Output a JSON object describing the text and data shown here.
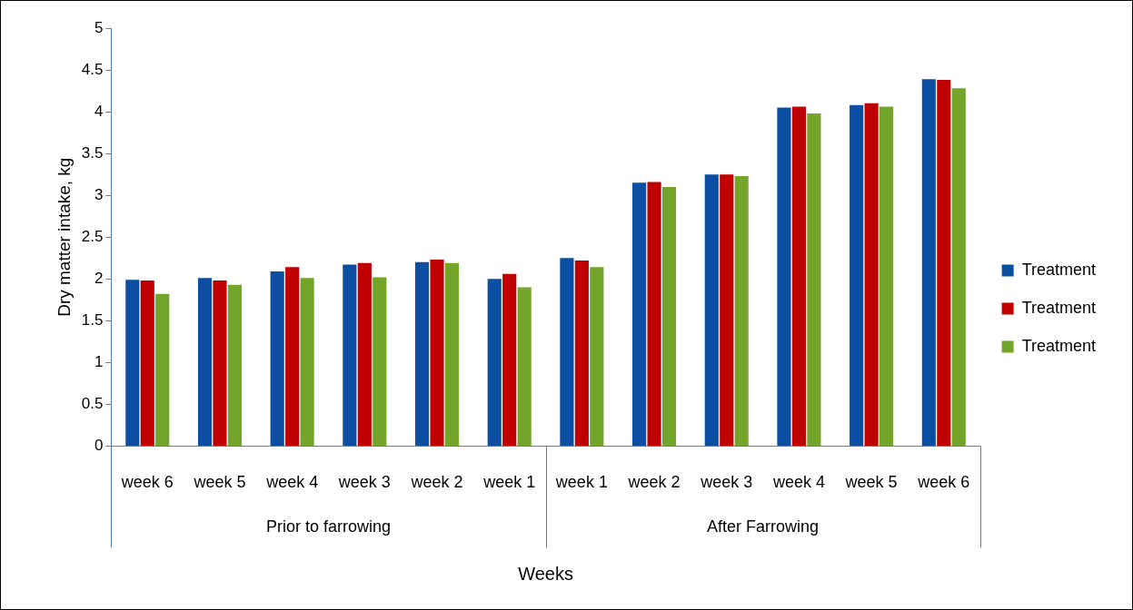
{
  "chart_data": {
    "type": "bar",
    "xlabel": "Weeks",
    "ylabel": "Dry matter intake, kg",
    "categories": [
      "week 6",
      "week 5",
      "week 4",
      "week 3",
      "week 2",
      "week 1",
      "week 1",
      "week 2",
      "week 3",
      "week 4",
      "week 5",
      "week 6"
    ],
    "series": [
      {
        "name": "Treatment",
        "color": "#0b4ea2",
        "values": [
          1.99,
          2.01,
          2.09,
          2.17,
          2.2,
          2.0,
          2.25,
          3.15,
          3.25,
          4.05,
          4.08,
          4.39
        ]
      },
      {
        "name": "Treatment",
        "color": "#c00000",
        "values": [
          1.98,
          1.98,
          2.14,
          2.19,
          2.23,
          2.06,
          2.22,
          3.16,
          3.25,
          4.06,
          4.1,
          4.38
        ]
      },
      {
        "name": "Treatment",
        "color": "#74a52b",
        "values": [
          1.82,
          1.93,
          2.01,
          2.02,
          2.19,
          1.9,
          2.14,
          3.1,
          3.23,
          3.98,
          4.06,
          4.28
        ]
      }
    ],
    "ylim": [
      0,
      5
    ],
    "yticks": [
      0,
      0.5,
      1,
      1.5,
      2,
      2.5,
      3,
      3.5,
      4,
      4.5,
      5
    ],
    "legend": "right",
    "annotations": [
      "Prior to farrowing",
      "After Farrowing"
    ]
  }
}
